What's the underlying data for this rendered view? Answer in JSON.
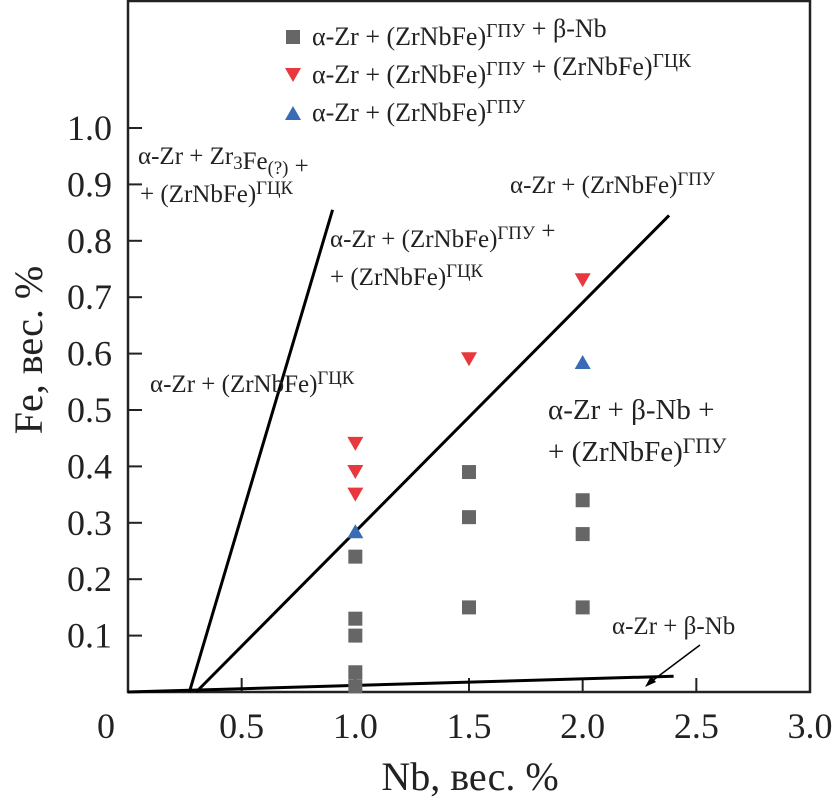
{
  "chart_data": {
    "type": "scatter",
    "title": "",
    "xlabel": "Nb, вес. %",
    "ylabel": "Fe, вес. %",
    "xlim": [
      0,
      3.0
    ],
    "ylim": [
      0,
      1.13
    ],
    "xticks": [
      "0",
      "0.5",
      "1.0",
      "1.5",
      "2.0",
      "2.5",
      "3.0"
    ],
    "xtick_values": [
      0,
      0.5,
      1.0,
      1.5,
      2.0,
      2.5,
      3.0
    ],
    "yticks": [
      "0.1",
      "0.2",
      "0.3",
      "0.4",
      "0.5",
      "0.6",
      "0.7",
      "0.8",
      "0.9",
      "1.0"
    ],
    "ytick_values": [
      0.1,
      0.2,
      0.3,
      0.4,
      0.5,
      0.6,
      0.7,
      0.8,
      0.9,
      1.0
    ],
    "grid": false,
    "legend_position": "top-center",
    "series": [
      {
        "name": "α-Zr + (ZrNbFe)ГПУ + β-Nb",
        "marker": "square",
        "color": "#666666",
        "legend": [
          {
            "t": "α-Zr + (ZrNbFe)"
          },
          {
            "t": "ГПУ",
            "s": "sup"
          },
          {
            "t": " + β-Nb"
          }
        ],
        "points": [
          [
            1.0,
            0.24
          ],
          [
            1.0,
            0.13
          ],
          [
            1.0,
            0.1
          ],
          [
            1.0,
            0.035
          ],
          [
            1.0,
            0.01
          ],
          [
            1.5,
            0.39
          ],
          [
            1.5,
            0.31
          ],
          [
            1.5,
            0.15
          ],
          [
            2.0,
            0.34
          ],
          [
            2.0,
            0.28
          ],
          [
            2.0,
            0.15
          ]
        ]
      },
      {
        "name": "α-Zr + (ZrNbFe)ГПУ + (ZrNbFe)ГЦК",
        "marker": "triangle-down",
        "color": "#e8383d",
        "legend": [
          {
            "t": "α-Zr + (ZrNbFe)"
          },
          {
            "t": "ГПУ",
            "s": "sup"
          },
          {
            "t": " + (ZrNbFe)"
          },
          {
            "t": "ГЦК",
            "s": "sup"
          }
        ],
        "points": [
          [
            1.0,
            0.44
          ],
          [
            1.0,
            0.39
          ],
          [
            1.0,
            0.35
          ],
          [
            1.5,
            0.59
          ],
          [
            2.0,
            0.73
          ]
        ]
      },
      {
        "name": "α-Zr + (ZrNbFe)ГПУ",
        "marker": "triangle-up",
        "color": "#3a6cb5",
        "legend": [
          {
            "t": "α-Zr + (ZrNbFe)"
          },
          {
            "t": "ГПУ",
            "s": "sup"
          }
        ],
        "points": [
          [
            1.0,
            0.285
          ],
          [
            2.0,
            0.585
          ]
        ]
      }
    ],
    "boundary_lines": [
      {
        "name": "boundary-fcc",
        "from": [
          0.27,
          0.0
        ],
        "to": [
          0.9,
          0.855
        ]
      },
      {
        "name": "boundary-hcp",
        "from": [
          0.3,
          0.0
        ],
        "to": [
          2.38,
          0.845
        ]
      },
      {
        "name": "boundary-beta-nb",
        "from": [
          0.0,
          0.0
        ],
        "to": [
          2.4,
          0.028
        ]
      }
    ],
    "annotations": [
      {
        "lines": [
          [
            {
              "t": "α-Zr + Zr"
            },
            {
              "t": "3",
              "s": "sub"
            },
            {
              "t": "Fe"
            },
            {
              "t": "(?)",
              "s": "sub"
            },
            {
              "t": " +"
            }
          ],
          [
            {
              "t": "+ (ZrNbFe)"
            },
            {
              "t": "ГЦК",
              "s": "sup"
            }
          ]
        ]
      },
      {
        "lines": [
          [
            {
              "t": "α-Zr + (ZrNbFe)"
            },
            {
              "t": "ГПУ",
              "s": "sup"
            }
          ]
        ]
      },
      {
        "lines": [
          [
            {
              "t": "α-Zr + (ZrNbFe)"
            },
            {
              "t": "ГПУ",
              "s": "sup"
            },
            {
              "t": " +"
            }
          ],
          [
            {
              "t": "+ (ZrNbFe)"
            },
            {
              "t": "ГЦК",
              "s": "sup"
            }
          ]
        ]
      },
      {
        "lines": [
          [
            {
              "t": "α-Zr + (ZrNbFe)"
            },
            {
              "t": "ГЦК",
              "s": "sup"
            }
          ]
        ]
      },
      {
        "lines": [
          [
            {
              "t": "α-Zr + β-Nb +"
            }
          ],
          [
            {
              "t": "+ (ZrNbFe)"
            },
            {
              "t": "ГПУ",
              "s": "sup"
            }
          ]
        ]
      },
      {
        "lines": [
          [
            {
              "t": "α-Zr + β-Nb"
            }
          ]
        ]
      }
    ]
  }
}
